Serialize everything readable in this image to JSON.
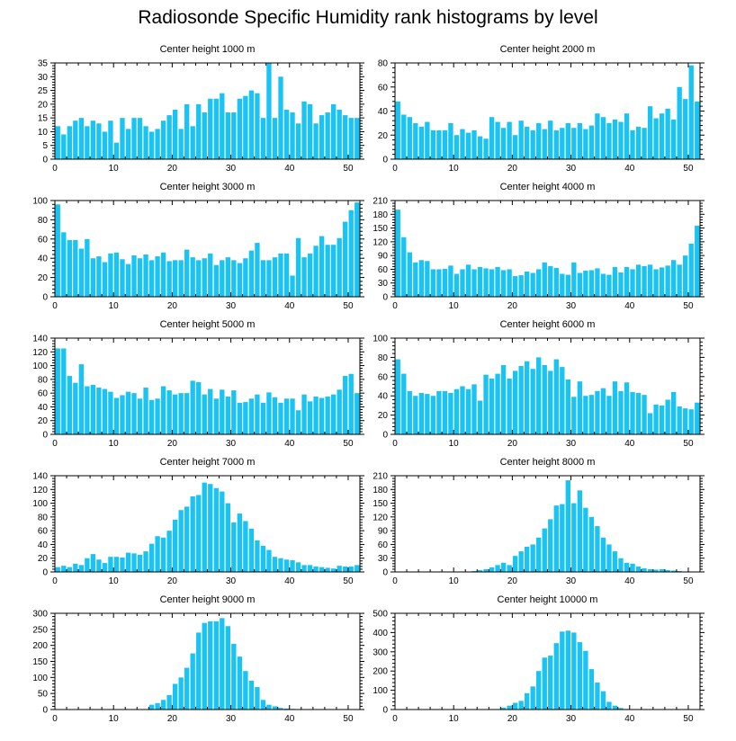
{
  "title": "Radiosonde Specific Humidity rank histograms by level",
  "colors": {
    "bar": "#19c4f5",
    "axis": "#000000"
  },
  "chart_data": [
    {
      "type": "bar",
      "title": "Center height 1000 m",
      "ylim": [
        0,
        35
      ],
      "yticks": [
        0,
        5,
        10,
        15,
        20,
        25,
        30,
        35
      ],
      "xlim": [
        0,
        52
      ],
      "xticks": [
        0,
        10,
        20,
        30,
        40,
        50
      ],
      "values": [
        12,
        9,
        12,
        14,
        15,
        12,
        14,
        13,
        10,
        14,
        6,
        15,
        11,
        15,
        15,
        12,
        10,
        11,
        14,
        16,
        18,
        11,
        20,
        12,
        20,
        17,
        22,
        22,
        24,
        17,
        17,
        22,
        23,
        25,
        24,
        15,
        35,
        15,
        30,
        18,
        17,
        13,
        21,
        20,
        13,
        16,
        17,
        20,
        18,
        16,
        15,
        15
      ]
    },
    {
      "type": "bar",
      "title": "Center height 2000 m",
      "ylim": [
        0,
        80
      ],
      "yticks": [
        0,
        20,
        40,
        60,
        80
      ],
      "xlim": [
        0,
        52
      ],
      "xticks": [
        0,
        10,
        20,
        30,
        40,
        50
      ],
      "values": [
        48,
        37,
        35,
        30,
        27,
        31,
        24,
        24,
        24,
        30,
        20,
        25,
        22,
        24,
        19,
        17,
        35,
        31,
        26,
        31,
        20,
        32,
        27,
        24,
        30,
        25,
        32,
        24,
        26,
        30,
        26,
        30,
        25,
        28,
        38,
        35,
        30,
        33,
        31,
        38,
        24,
        27,
        26,
        44,
        34,
        38,
        42,
        33,
        60,
        50,
        78,
        48
      ]
    },
    {
      "type": "bar",
      "title": "Center height 3000 m",
      "ylim": [
        0,
        100
      ],
      "yticks": [
        0,
        20,
        40,
        60,
        80,
        100
      ],
      "xlim": [
        0,
        52
      ],
      "xticks": [
        0,
        10,
        20,
        30,
        40,
        50
      ],
      "values": [
        96,
        67,
        59,
        59,
        50,
        60,
        40,
        42,
        36,
        45,
        46,
        39,
        34,
        43,
        40,
        44,
        38,
        42,
        46,
        37,
        38,
        38,
        49,
        41,
        38,
        40,
        45,
        33,
        38,
        41,
        38,
        35,
        40,
        48,
        56,
        38,
        38,
        41,
        45,
        45,
        22,
        61,
        41,
        45,
        53,
        63,
        54,
        54,
        61,
        78,
        90,
        98
      ]
    },
    {
      "type": "bar",
      "title": "Center height 4000 m",
      "ylim": [
        0,
        210
      ],
      "yticks": [
        0,
        30,
        60,
        90,
        120,
        150,
        180,
        210
      ],
      "xlim": [
        0,
        52
      ],
      "xticks": [
        0,
        10,
        20,
        30,
        40,
        50
      ],
      "values": [
        190,
        130,
        97,
        75,
        80,
        78,
        60,
        60,
        61,
        68,
        50,
        60,
        70,
        60,
        65,
        62,
        60,
        65,
        58,
        60,
        45,
        47,
        55,
        52,
        60,
        75,
        67,
        63,
        50,
        48,
        75,
        52,
        57,
        58,
        62,
        50,
        48,
        65,
        53,
        65,
        60,
        70,
        67,
        70,
        60,
        64,
        68,
        80,
        70,
        90,
        116,
        155
      ]
    },
    {
      "type": "bar",
      "title": "Center height 5000 m",
      "ylim": [
        0,
        140
      ],
      "yticks": [
        0,
        20,
        40,
        60,
        80,
        100,
        120,
        140
      ],
      "xlim": [
        0,
        52
      ],
      "xticks": [
        0,
        10,
        20,
        30,
        40,
        50
      ],
      "values": [
        125,
        125,
        85,
        75,
        102,
        70,
        72,
        68,
        66,
        62,
        53,
        57,
        62,
        60,
        52,
        68,
        50,
        52,
        70,
        64,
        58,
        60,
        60,
        78,
        76,
        58,
        66,
        52,
        65,
        55,
        64,
        46,
        47,
        52,
        58,
        46,
        61,
        54,
        46,
        52,
        52,
        35,
        58,
        48,
        55,
        53,
        55,
        58,
        65,
        85,
        88,
        60
      ]
    },
    {
      "type": "bar",
      "title": "Center height 6000 m",
      "ylim": [
        0,
        100
      ],
      "yticks": [
        0,
        20,
        40,
        60,
        80,
        100
      ],
      "xlim": [
        0,
        52
      ],
      "xticks": [
        0,
        10,
        20,
        30,
        40,
        50
      ],
      "values": [
        78,
        63,
        45,
        40,
        43,
        42,
        40,
        45,
        45,
        43,
        47,
        50,
        47,
        52,
        35,
        62,
        58,
        63,
        72,
        58,
        66,
        71,
        76,
        68,
        80,
        72,
        66,
        78,
        70,
        57,
        39,
        55,
        40,
        41,
        45,
        48,
        40,
        55,
        45,
        54,
        44,
        43,
        41,
        22,
        31,
        30,
        36,
        44,
        29,
        27,
        26,
        33
      ]
    },
    {
      "type": "bar",
      "title": "Center height 7000 m",
      "ylim": [
        0,
        140
      ],
      "yticks": [
        0,
        20,
        40,
        60,
        80,
        100,
        120,
        140
      ],
      "xlim": [
        0,
        52
      ],
      "xticks": [
        0,
        10,
        20,
        30,
        40,
        50
      ],
      "values": [
        7,
        9,
        7,
        12,
        10,
        20,
        26,
        18,
        13,
        22,
        22,
        21,
        28,
        27,
        25,
        30,
        41,
        52,
        50,
        60,
        76,
        90,
        95,
        110,
        112,
        130,
        128,
        122,
        117,
        100,
        72,
        85,
        74,
        63,
        46,
        38,
        32,
        22,
        20,
        18,
        17,
        14,
        10,
        10,
        8,
        7,
        6,
        5,
        9,
        8,
        8,
        10
      ]
    },
    {
      "type": "bar",
      "title": "Center height 8000 m",
      "ylim": [
        0,
        210
      ],
      "yticks": [
        0,
        30,
        60,
        90,
        120,
        150,
        180,
        210
      ],
      "xlim": [
        0,
        52
      ],
      "xticks": [
        0,
        10,
        20,
        30,
        40,
        50
      ],
      "values": [
        0,
        0,
        0,
        0,
        0,
        0,
        0,
        0,
        0,
        0,
        0,
        0,
        1,
        2,
        4,
        6,
        10,
        15,
        20,
        15,
        35,
        45,
        55,
        60,
        75,
        95,
        115,
        145,
        148,
        200,
        150,
        178,
        140,
        120,
        100,
        75,
        60,
        45,
        30,
        20,
        18,
        12,
        8,
        6,
        5,
        6,
        4,
        3,
        2,
        1,
        1,
        0
      ]
    },
    {
      "type": "bar",
      "title": "Center height 9000 m",
      "ylim": [
        0,
        300
      ],
      "yticks": [
        0,
        50,
        100,
        150,
        200,
        250,
        300
      ],
      "xlim": [
        0,
        52
      ],
      "xticks": [
        0,
        10,
        20,
        30,
        40,
        50
      ],
      "values": [
        0,
        0,
        0,
        0,
        0,
        0,
        0,
        0,
        0,
        0,
        0,
        0,
        0,
        0,
        0,
        0,
        15,
        20,
        30,
        45,
        80,
        100,
        130,
        175,
        240,
        270,
        275,
        275,
        285,
        260,
        205,
        165,
        120,
        90,
        70,
        30,
        15,
        10,
        5,
        3,
        2,
        1,
        0,
        0,
        0,
        0,
        0,
        0,
        0,
        0,
        0,
        0
      ]
    },
    {
      "type": "bar",
      "title": "Center height 10000 m",
      "ylim": [
        0,
        500
      ],
      "yticks": [
        0,
        100,
        200,
        300,
        400,
        500
      ],
      "xlim": [
        0,
        52
      ],
      "xticks": [
        0,
        10,
        20,
        30,
        40,
        50
      ],
      "values": [
        0,
        0,
        0,
        0,
        0,
        0,
        0,
        0,
        0,
        0,
        0,
        0,
        0,
        0,
        0,
        0,
        0,
        0,
        10,
        20,
        35,
        45,
        85,
        120,
        200,
        270,
        280,
        345,
        405,
        410,
        400,
        350,
        305,
        210,
        140,
        95,
        40,
        20,
        8,
        3,
        1,
        0,
        0,
        0,
        0,
        0,
        0,
        0,
        0,
        0,
        0,
        0
      ]
    }
  ]
}
